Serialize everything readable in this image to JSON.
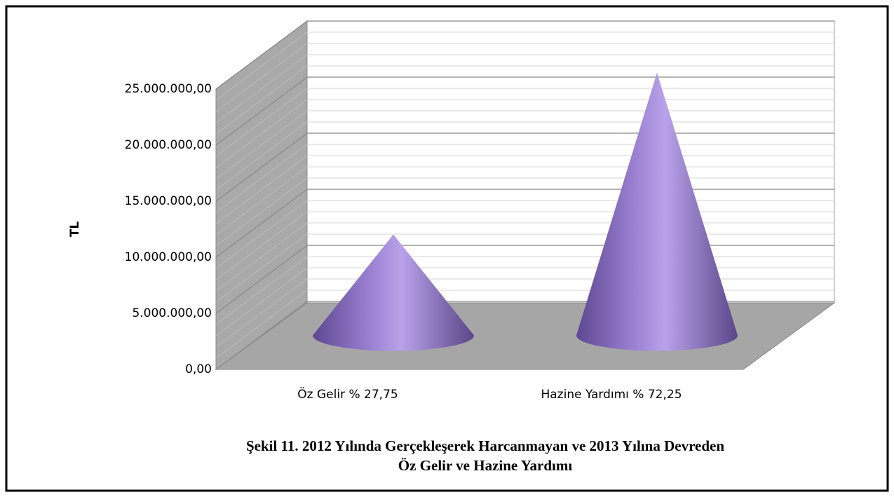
{
  "chart_data": {
    "type": "cone",
    "categories": [
      "Öz Gelir % 27,75",
      "Hazine Yardımı % 72,25"
    ],
    "values": [
      9000000,
      23430000
    ],
    "color": "#9a7fd1",
    "ylabel": "TL",
    "ylim": [
      0,
      25000000
    ],
    "yticks": [
      {
        "value": 0,
        "label": "0,00"
      },
      {
        "value": 5000000,
        "label": "5.000.000,00"
      },
      {
        "value": 10000000,
        "label": "10.000.000,00"
      },
      {
        "value": 15000000,
        "label": "15.000.000,00"
      },
      {
        "value": 20000000,
        "label": "20.000.000,00"
      },
      {
        "value": 25000000,
        "label": "25.000.000,00"
      }
    ],
    "grid": true,
    "caption": [
      "Şekil 11. 2012 Yılında Gerçekleşerek Harcanmayan ve 2013 Yılına Devreden",
      "Öz Gelir ve Hazine Yardımı"
    ]
  }
}
